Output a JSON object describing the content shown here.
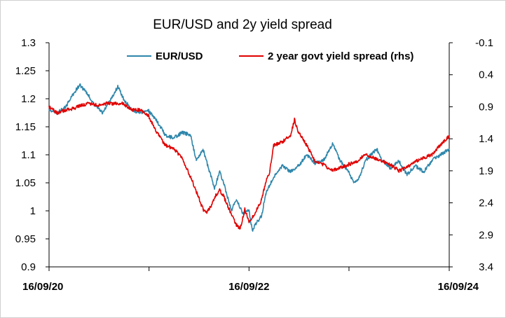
{
  "chart_data": {
    "type": "line",
    "title": "EUR/USD and 2y yield spread",
    "x_tick_labels": [
      "16/09/20",
      "16/09/22",
      "16/09/24"
    ],
    "x_start": "2020-09-16",
    "x_end": "2024-09-16",
    "y_left": {
      "ticks": [
        "1.3",
        "1.25",
        "1.2",
        "1.15",
        "1.1",
        "1.05",
        "1",
        "0.95",
        "0.9"
      ],
      "range": [
        0.9,
        1.3
      ]
    },
    "y_right": {
      "ticks": [
        "-0.1",
        "0.4",
        "0.9",
        "1.4",
        "1.9",
        "2.4",
        "2.9",
        "3.4"
      ],
      "range": [
        -0.1,
        3.4
      ],
      "inverted": true
    },
    "grid": false,
    "legend_position": "top",
    "series": [
      {
        "name": "EUR/USD",
        "axis": "left",
        "color": "#2E86AB",
        "x": [
          "2020-09-16",
          "2020-10-15",
          "2020-11-15",
          "2020-12-15",
          "2021-01-06",
          "2021-02-01",
          "2021-03-01",
          "2021-03-31",
          "2021-05-01",
          "2021-05-25",
          "2021-06-15",
          "2021-07-15",
          "2021-08-15",
          "2021-09-15",
          "2021-10-15",
          "2021-11-15",
          "2021-12-15",
          "2022-01-15",
          "2022-02-15",
          "2022-03-07",
          "2022-04-01",
          "2022-04-25",
          "2022-05-13",
          "2022-06-01",
          "2022-06-15",
          "2022-07-14",
          "2022-08-01",
          "2022-08-25",
          "2022-09-16",
          "2022-09-28",
          "2022-10-15",
          "2022-11-01",
          "2022-11-15",
          "2022-12-15",
          "2023-01-15",
          "2023-02-15",
          "2023-03-15",
          "2023-04-15",
          "2023-05-15",
          "2023-06-15",
          "2023-07-18",
          "2023-08-15",
          "2023-09-15",
          "2023-10-03",
          "2023-10-25",
          "2023-11-15",
          "2023-12-27",
          "2024-01-15",
          "2024-02-15",
          "2024-03-15",
          "2024-04-15",
          "2024-05-15",
          "2024-06-15",
          "2024-07-15",
          "2024-08-15",
          "2024-09-16"
        ],
        "values": [
          1.18,
          1.175,
          1.185,
          1.21,
          1.225,
          1.21,
          1.19,
          1.175,
          1.2,
          1.222,
          1.2,
          1.18,
          1.175,
          1.178,
          1.16,
          1.135,
          1.13,
          1.14,
          1.135,
          1.09,
          1.11,
          1.07,
          1.04,
          1.07,
          1.05,
          1.0,
          1.02,
          0.995,
          1.0,
          0.965,
          0.98,
          0.99,
          1.03,
          1.06,
          1.08,
          1.07,
          1.08,
          1.1,
          1.085,
          1.09,
          1.12,
          1.09,
          1.07,
          1.05,
          1.06,
          1.09,
          1.11,
          1.09,
          1.075,
          1.09,
          1.065,
          1.08,
          1.07,
          1.09,
          1.1,
          1.11
        ]
      },
      {
        "name": "2 year govt yield spread (rhs)",
        "axis": "right",
        "color": "#E00000",
        "x": [
          "2020-09-16",
          "2020-10-15",
          "2020-11-15",
          "2020-12-15",
          "2021-01-15",
          "2021-02-15",
          "2021-03-15",
          "2021-04-15",
          "2021-05-15",
          "2021-06-15",
          "2021-07-15",
          "2021-08-15",
          "2021-09-15",
          "2021-10-15",
          "2021-11-15",
          "2021-12-15",
          "2022-01-15",
          "2022-02-15",
          "2022-03-15",
          "2022-04-01",
          "2022-04-15",
          "2022-05-01",
          "2022-05-15",
          "2022-06-01",
          "2022-06-15",
          "2022-07-01",
          "2022-07-15",
          "2022-08-01",
          "2022-08-15",
          "2022-09-01",
          "2022-09-16",
          "2022-10-01",
          "2022-10-15",
          "2022-11-01",
          "2022-11-15",
          "2022-12-01",
          "2022-12-15",
          "2023-01-15",
          "2023-02-15",
          "2023-03-01",
          "2023-03-15",
          "2023-04-15",
          "2023-05-15",
          "2023-06-15",
          "2023-07-15",
          "2023-08-15",
          "2023-09-15",
          "2023-10-15",
          "2023-11-15",
          "2023-12-15",
          "2024-01-15",
          "2024-02-15",
          "2024-03-15",
          "2024-04-15",
          "2024-05-15",
          "2024-06-15",
          "2024-07-15",
          "2024-08-15",
          "2024-09-16"
        ],
        "values": [
          0.9,
          1.0,
          0.95,
          0.93,
          0.87,
          0.85,
          0.88,
          0.85,
          0.85,
          0.85,
          0.95,
          0.95,
          1.05,
          1.3,
          1.5,
          1.55,
          1.7,
          2.0,
          2.3,
          2.5,
          2.55,
          2.45,
          2.3,
          2.2,
          2.3,
          2.45,
          2.6,
          2.75,
          2.8,
          2.5,
          2.7,
          2.6,
          2.5,
          2.35,
          2.1,
          1.9,
          1.5,
          1.45,
          1.35,
          1.1,
          1.3,
          1.5,
          1.75,
          1.8,
          1.9,
          1.85,
          1.8,
          1.75,
          1.65,
          1.7,
          1.75,
          1.8,
          1.9,
          1.85,
          1.75,
          1.7,
          1.65,
          1.5,
          1.35
        ]
      }
    ]
  }
}
